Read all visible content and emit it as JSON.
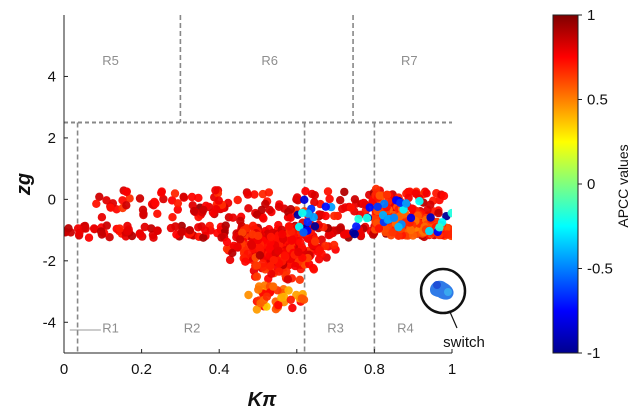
{
  "chart_data": {
    "type": "scatter",
    "title": "",
    "xlabel": "Kπ",
    "ylabel": "zg",
    "xlim": [
      0,
      1
    ],
    "ylim": [
      -5,
      6
    ],
    "xticks": [
      "0",
      "0.2",
      "0.4",
      "0.6",
      "0.8",
      "1"
    ],
    "yticks": [
      "-4",
      "-2",
      "0",
      "2",
      "4"
    ],
    "grid": false,
    "colorbar": {
      "label": "APCC values",
      "range": [
        -1,
        1
      ],
      "ticks": [
        "1",
        "0.5",
        "0",
        "-0.5",
        "-1"
      ],
      "colormap": "jet"
    },
    "regions": [
      {
        "label": "R1",
        "x": 0.12,
        "y": -4.2
      },
      {
        "label": "R2",
        "x": 0.33,
        "y": -4.2
      },
      {
        "label": "R3",
        "x": 0.7,
        "y": -4.2
      },
      {
        "label": "R4",
        "x": 0.88,
        "y": -4.2
      },
      {
        "label": "R5",
        "x": 0.12,
        "y": 4.5
      },
      {
        "label": "R6",
        "x": 0.53,
        "y": 4.5
      },
      {
        "label": "R7",
        "x": 0.89,
        "y": 4.5
      }
    ],
    "boundaries": {
      "horizontal": {
        "y": 2.5
      },
      "vertical_upper": [
        0.3,
        0.745
      ],
      "vertical_lower": [
        0.035,
        0.62,
        0.8
      ]
    },
    "annotation": {
      "text": "switch",
      "x": 0.99,
      "y": -3.4
    },
    "clusters": [
      {
        "description": "band along zg≈-1",
        "x_range": [
          0.0,
          1.0
        ],
        "y_range": [
          -1.25,
          -0.85
        ],
        "apcc_mean": 0.82,
        "count": 160
      },
      {
        "description": "upper band",
        "x_range": [
          0.08,
          0.98
        ],
        "y_range": [
          -0.6,
          0.3
        ],
        "apcc_mean": 0.78,
        "count": 170
      },
      {
        "description": "dense central cloud",
        "x_range": [
          0.42,
          0.7
        ],
        "y_range": [
          -3.0,
          -0.3
        ],
        "apcc_mean": 0.74,
        "count": 320
      },
      {
        "description": "lower tail",
        "x_range": [
          0.47,
          0.62
        ],
        "y_range": [
          -3.6,
          -2.8
        ],
        "apcc_mean": 0.55,
        "count": 40
      },
      {
        "description": "right wedge",
        "x_range": [
          0.8,
          1.0
        ],
        "y_range": [
          -1.2,
          0.4
        ],
        "apcc_mean": 0.65,
        "count": 200
      },
      {
        "description": "low-APCC points",
        "x_range": [
          0.6,
          1.0
        ],
        "y_range": [
          -1.2,
          0.0
        ],
        "apcc_mean": -0.7,
        "count": 45
      }
    ]
  }
}
